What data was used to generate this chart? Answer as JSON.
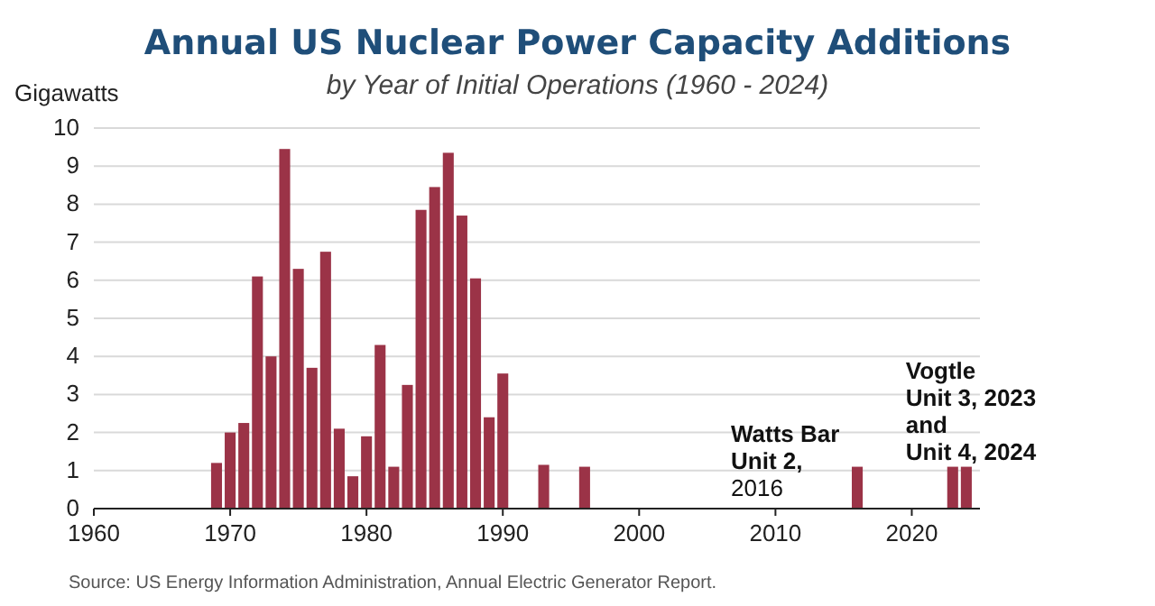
{
  "chart_data": {
    "type": "bar",
    "title": "Annual US Nuclear Power Capacity Additions",
    "subtitle": "by Year of Initial Operations (1960 - 2024)",
    "ylabel": "Gigawatts",
    "x": [
      1969,
      1970,
      1971,
      1972,
      1973,
      1974,
      1975,
      1976,
      1977,
      1978,
      1979,
      1980,
      1981,
      1982,
      1983,
      1984,
      1985,
      1986,
      1987,
      1988,
      1989,
      1990,
      1993,
      1996,
      2016,
      2023,
      2024
    ],
    "values": [
      1.2,
      2.0,
      2.25,
      6.1,
      4.0,
      9.45,
      6.3,
      3.7,
      6.75,
      2.1,
      0.85,
      1.9,
      4.3,
      1.1,
      3.25,
      7.85,
      8.45,
      9.35,
      7.7,
      6.05,
      2.4,
      3.55,
      1.15,
      1.1,
      1.1,
      1.1,
      1.1
    ],
    "color": "#9b3347",
    "xlim": [
      1960,
      2025
    ],
    "xticks": [
      1960,
      1970,
      1980,
      1990,
      2000,
      2010,
      2020
    ],
    "ylim": [
      0,
      10
    ],
    "yticks": [
      0,
      1,
      2,
      3,
      4,
      5,
      6,
      7,
      8,
      9,
      10
    ],
    "grid": "y",
    "annotations": [
      {
        "text": "Watts Bar\nUnit 2,\n2016",
        "x": 2016,
        "y": 1.1
      },
      {
        "text": "Vogtle\nUnit 3, 2023\nand\nUnit 4, 2024",
        "x": 2023,
        "y": 1.1
      },
      "Source: US Energy Information Administration, Annual Electric Generator Report."
    ]
  }
}
